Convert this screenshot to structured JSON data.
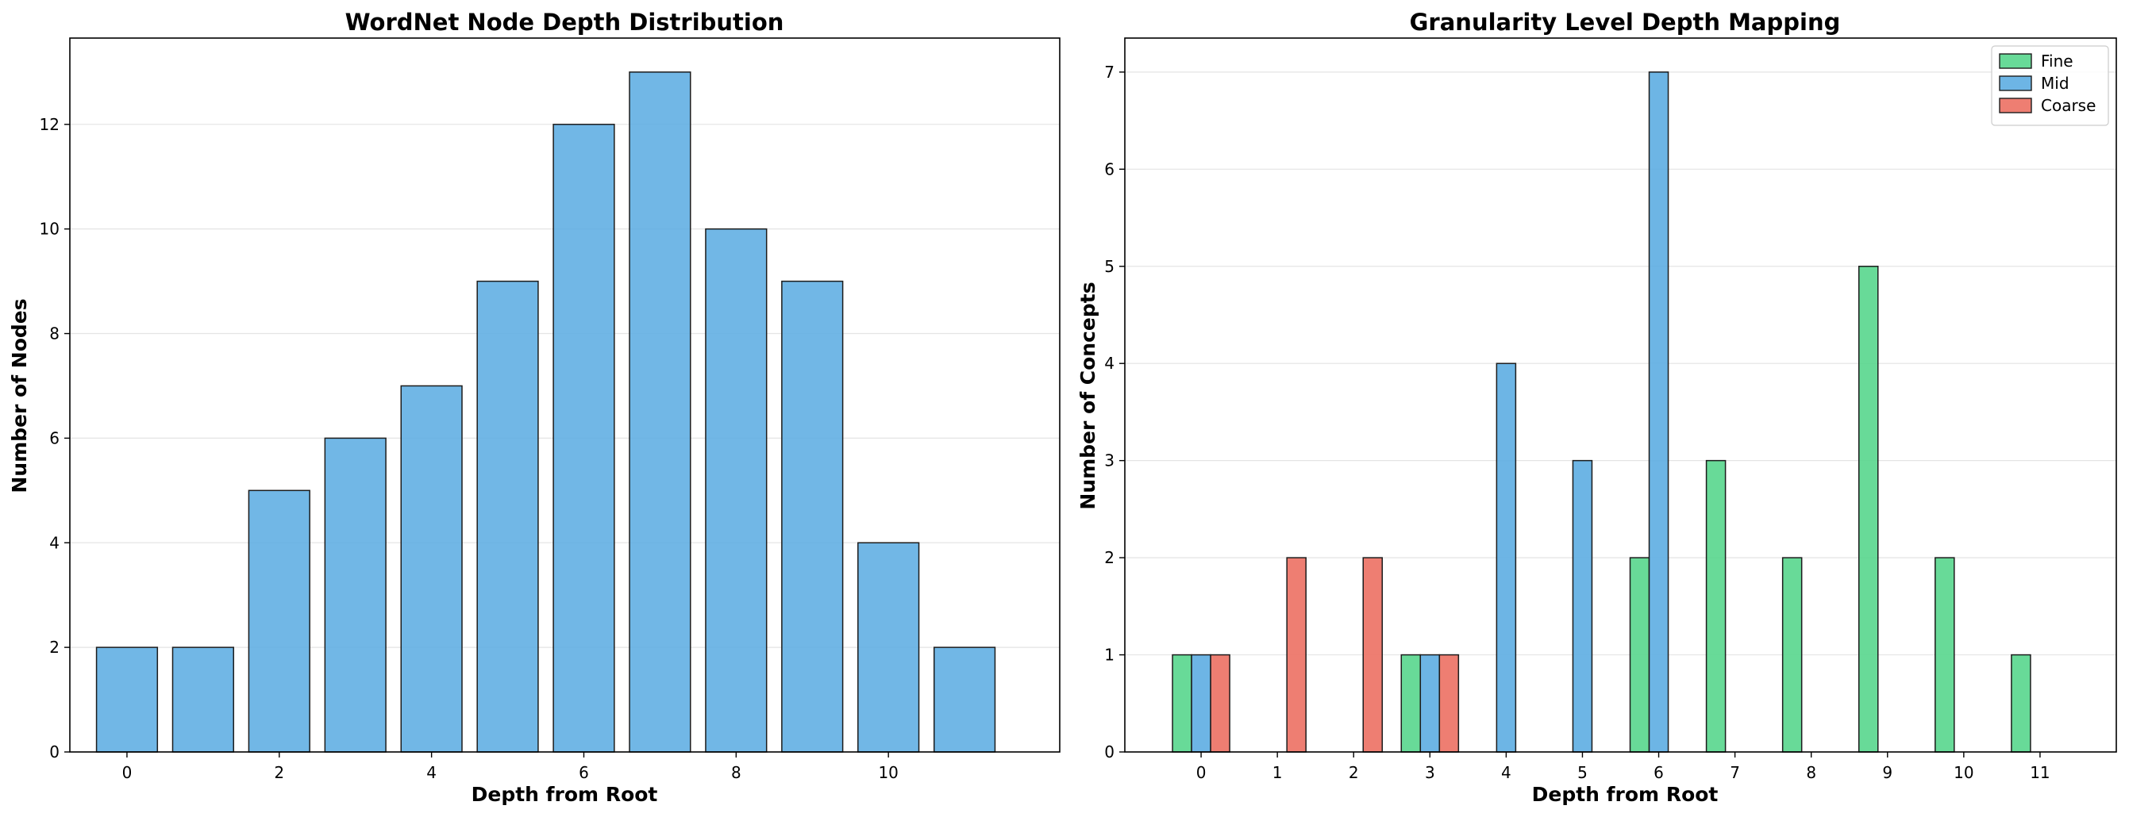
{
  "chart_data": [
    {
      "type": "bar",
      "title": "WordNet Node Depth Distribution",
      "xlabel": "Depth from Root",
      "ylabel": "Number of Nodes",
      "categories": [
        0,
        1,
        2,
        3,
        4,
        5,
        6,
        7,
        8,
        9,
        10,
        11
      ],
      "values": [
        2,
        2,
        5,
        6,
        7,
        9,
        12,
        13,
        10,
        9,
        4,
        2
      ],
      "xticks": [
        "0",
        "2",
        "4",
        "6",
        "8",
        "10"
      ],
      "yticks": [
        "0",
        "2",
        "4",
        "6",
        "8",
        "10",
        "12"
      ],
      "xlim": [
        -0.75,
        12.25
      ],
      "ylim": [
        0,
        13.65
      ],
      "color": "#5dade2",
      "grid": "y",
      "legend": "none"
    },
    {
      "type": "bar",
      "title": "Granularity Level Depth Mapping",
      "xlabel": "Depth from Root",
      "ylabel": "Number of Concepts",
      "categories": [
        "0",
        "1",
        "2",
        "3",
        "4",
        "5",
        "6",
        "7",
        "8",
        "9",
        "10",
        "11"
      ],
      "series": [
        {
          "name": "Fine",
          "color": "#58d68d",
          "values": [
            1,
            0,
            0,
            1,
            0,
            0,
            2,
            3,
            2,
            5,
            2,
            1
          ]
        },
        {
          "name": "Mid",
          "color": "#5dade2",
          "values": [
            1,
            0,
            0,
            1,
            4,
            3,
            7,
            0,
            0,
            0,
            0,
            0
          ]
        },
        {
          "name": "Coarse",
          "color": "#ec7063",
          "values": [
            1,
            2,
            2,
            1,
            0,
            0,
            0,
            0,
            0,
            0,
            0,
            0
          ]
        }
      ],
      "yticks": [
        "0",
        "1",
        "2",
        "3",
        "4",
        "5",
        "6",
        "7"
      ],
      "ylim": [
        0,
        7.35
      ],
      "grid": "y",
      "legend": "top-right"
    }
  ]
}
